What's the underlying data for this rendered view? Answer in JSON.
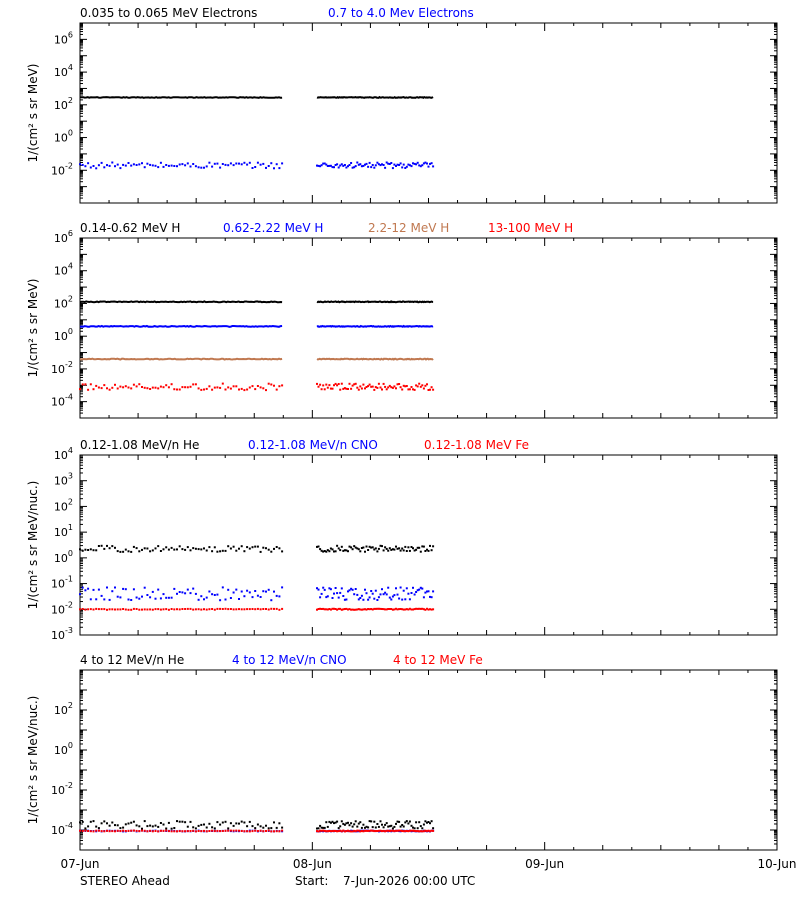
{
  "footer": {
    "spacecraft": "STEREO Ahead",
    "start_label": "Start:",
    "start_value": "7-Jun-2026 00:00 UTC"
  },
  "x_ticks": [
    "07-Jun",
    "08-Jun",
    "09-Jun",
    "10-Jun"
  ],
  "colors": {
    "black": "#000000",
    "blue": "#0000ff",
    "tan": "#c07850",
    "red": "#ff0000"
  },
  "chart_data": [
    {
      "type": "scatter",
      "ylabel": "1/(cm² s sr MeV)",
      "ylog": true,
      "ylim_exp": [
        -4,
        7
      ],
      "ytick_exps": [
        -2,
        0,
        2,
        4,
        6
      ],
      "xlim_days": [
        0,
        3
      ],
      "gap_days": [
        0.87,
        1.02
      ],
      "data_end_days": 1.52,
      "series": [
        {
          "name": "0.035 to 0.065 MeV Electrons",
          "color": "#000000",
          "level_exp": 2.45,
          "scatter": 0.04,
          "style": "line"
        },
        {
          "name": "0.7 to 4.0 Mev Electrons",
          "color": "#0000ff",
          "level_exp": -1.7,
          "scatter": 0.18,
          "style": "dots"
        }
      ]
    },
    {
      "type": "scatter",
      "ylabel": "1/(cm² s sr MeV)",
      "ylog": true,
      "ylim_exp": [
        -5,
        6
      ],
      "ytick_exps": [
        -4,
        -2,
        0,
        2,
        4,
        6
      ],
      "xlim_days": [
        0,
        3
      ],
      "gap_days": [
        0.87,
        1.02
      ],
      "data_end_days": 1.52,
      "series": [
        {
          "name": "0.14-0.62 MeV H",
          "color": "#000000",
          "level_exp": 2.1,
          "scatter": 0.05,
          "style": "line"
        },
        {
          "name": "0.62-2.22 MeV H",
          "color": "#0000ff",
          "level_exp": 0.6,
          "scatter": 0.05,
          "style": "line"
        },
        {
          "name": "2.2-12 MeV H",
          "color": "#c07850",
          "level_exp": -1.4,
          "scatter": 0.05,
          "style": "line"
        },
        {
          "name": "13-100 MeV H",
          "color": "#ff0000",
          "level_exp": -3.1,
          "scatter": 0.2,
          "style": "dots"
        }
      ]
    },
    {
      "type": "scatter",
      "ylabel": "1/(cm² s sr MeV/nuc.)",
      "ylog": true,
      "ylim_exp": [
        -3,
        4
      ],
      "ytick_exps": [
        -3,
        -2,
        -1,
        0,
        1,
        2,
        3,
        4
      ],
      "xlim_days": [
        0,
        3
      ],
      "gap_days": [
        0.87,
        1.02
      ],
      "data_end_days": 1.52,
      "series": [
        {
          "name": "0.12-1.08 MeV/n He",
          "color": "#000000",
          "level_exp": 0.35,
          "scatter": 0.12,
          "style": "dots"
        },
        {
          "name": "0.12-1.08 MeV/n CNO",
          "color": "#0000ff",
          "level_exp": -1.4,
          "scatter": 0.25,
          "style": "dots"
        },
        {
          "name": "0.12-1.08 MeV Fe",
          "color": "#ff0000",
          "level_exp": -2.0,
          "scatter": 0.02,
          "style": "dots"
        }
      ]
    },
    {
      "type": "scatter",
      "ylabel": "1/(cm² s sr MeV/nuc.)",
      "ylog": true,
      "ylim_exp": [
        -5,
        4
      ],
      "ytick_exps": [
        -4,
        -2,
        0,
        2
      ],
      "xlim_days": [
        0,
        3
      ],
      "gap_days": [
        0.87,
        1.02
      ],
      "data_end_days": 1.52,
      "series": [
        {
          "name": "4 to 12 MeV/n He",
          "color": "#000000",
          "level_exp": -3.75,
          "scatter": 0.2,
          "style": "dots"
        },
        {
          "name": "4 to 12 MeV/n CNO",
          "color": "#0000ff",
          "level_exp": -4.05,
          "scatter": 0.02,
          "style": "dots"
        },
        {
          "name": "4 to 12 MeV Fe",
          "color": "#ff0000",
          "level_exp": -4.05,
          "scatter": 0.02,
          "style": "dots"
        }
      ]
    }
  ]
}
